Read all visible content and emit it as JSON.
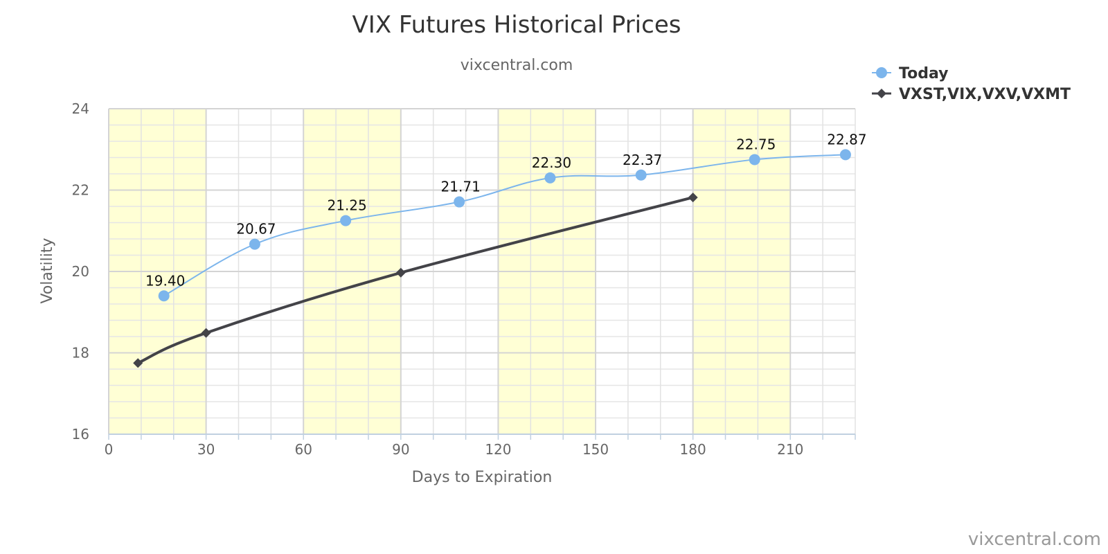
{
  "chart_data": {
    "type": "line",
    "title": "VIX Futures Historical Prices",
    "subtitle": "vixcentral.com",
    "xlabel": "Days to Expiration",
    "ylabel": "Volatility",
    "xlim": [
      0,
      230
    ],
    "ylim": [
      16,
      24
    ],
    "x_ticks": [
      0,
      30,
      60,
      90,
      120,
      150,
      180,
      210
    ],
    "y_ticks": [
      16,
      18,
      20,
      22,
      24
    ],
    "grid": true,
    "plot_bands_x": [
      [
        0,
        30
      ],
      [
        60,
        90
      ],
      [
        120,
        150
      ],
      [
        180,
        210
      ]
    ],
    "plot_band_color": "#FFFFD5",
    "legend_position": "top-right",
    "series": [
      {
        "name": "Today",
        "color": "#7CB5EC",
        "marker": "circle",
        "smooth": true,
        "show_data_labels": true,
        "points": [
          {
            "x": 17,
            "y": 19.4,
            "label": "19.40"
          },
          {
            "x": 45,
            "y": 20.67,
            "label": "20.67"
          },
          {
            "x": 73,
            "y": 21.25,
            "label": "21.25"
          },
          {
            "x": 108,
            "y": 21.71,
            "label": "21.71"
          },
          {
            "x": 136,
            "y": 22.3,
            "label": "22.30"
          },
          {
            "x": 164,
            "y": 22.37,
            "label": "22.37"
          },
          {
            "x": 199,
            "y": 22.75,
            "label": "22.75"
          },
          {
            "x": 227,
            "y": 22.87,
            "label": "22.87"
          }
        ]
      },
      {
        "name": "VXST,VIX,VXV,VXMT",
        "color": "#434348",
        "marker": "diamond",
        "smooth": true,
        "show_data_labels": false,
        "points": [
          {
            "x": 9,
            "y": 17.75
          },
          {
            "x": 30,
            "y": 18.49
          },
          {
            "x": 90,
            "y": 19.97
          },
          {
            "x": 180,
            "y": 21.82
          }
        ]
      }
    ]
  },
  "credit": "vixcentral.com"
}
